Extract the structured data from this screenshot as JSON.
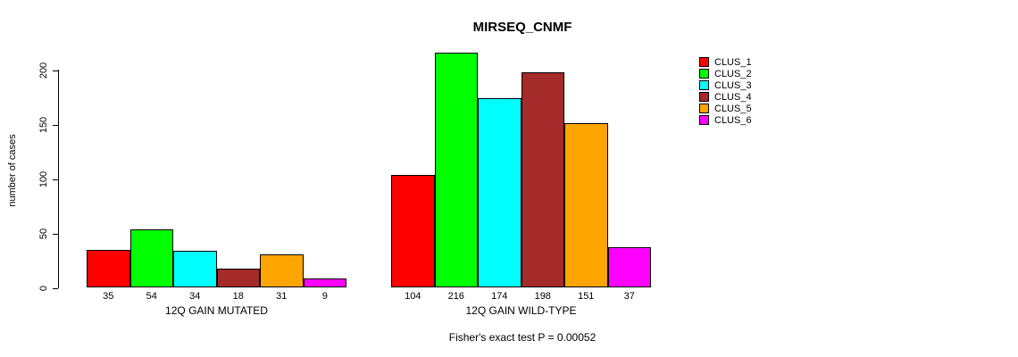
{
  "chart_data": {
    "type": "bar",
    "title": "MIRSEQ_CNMF",
    "ylabel": "number of cases",
    "ylim": [
      0,
      220
    ],
    "yticks": [
      0,
      50,
      100,
      150,
      200
    ],
    "grid": false,
    "legend_position": "right",
    "categories": [
      "12Q GAIN MUTATED",
      "12Q GAIN WILD-TYPE"
    ],
    "series": [
      {
        "name": "CLUS_1",
        "color": "#FF0000",
        "values": [
          35,
          104
        ]
      },
      {
        "name": "CLUS_2",
        "color": "#00FF00",
        "values": [
          54,
          216
        ]
      },
      {
        "name": "CLUS_3",
        "color": "#00FFFF",
        "values": [
          34,
          174
        ]
      },
      {
        "name": "CLUS_4",
        "color": "#A52A2A",
        "values": [
          18,
          198
        ]
      },
      {
        "name": "CLUS_5",
        "color": "#FFA500",
        "values": [
          31,
          151
        ]
      },
      {
        "name": "CLUS_6",
        "color": "#FF00FF",
        "values": [
          9,
          37
        ]
      }
    ],
    "annotation": "Fisher's exact test P = 0.00052"
  }
}
